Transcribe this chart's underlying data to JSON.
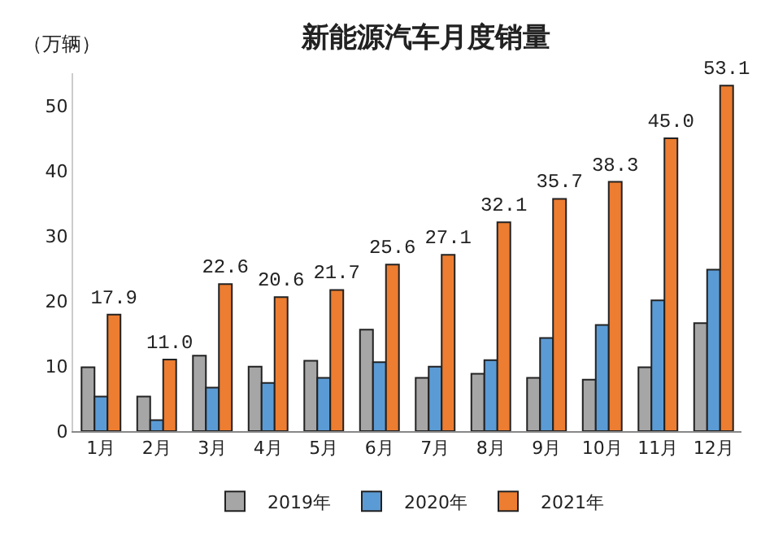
{
  "chart_data": {
    "type": "bar",
    "title": "新能源汽车月度销量",
    "ylabel": "（万辆）",
    "categories": [
      "1月",
      "2月",
      "3月",
      "4月",
      "5月",
      "6月",
      "7月",
      "8月",
      "9月",
      "10月",
      "11月",
      "12月"
    ],
    "series": [
      {
        "name": "2019年",
        "color": "#a6a6a6",
        "values": [
          9.8,
          5.3,
          11.6,
          9.9,
          10.8,
          15.6,
          8.2,
          8.8,
          8.2,
          7.9,
          9.8,
          16.6
        ]
      },
      {
        "name": "2020年",
        "color": "#5b9bd5",
        "values": [
          5.3,
          1.7,
          6.7,
          7.4,
          8.2,
          10.6,
          9.9,
          10.9,
          14.3,
          16.3,
          20.1,
          24.8
        ]
      },
      {
        "name": "2021年",
        "color": "#ed7d31",
        "values": [
          17.9,
          11.0,
          22.6,
          20.6,
          21.7,
          25.6,
          27.1,
          32.1,
          35.7,
          38.3,
          45.0,
          53.1
        ],
        "value_labels": [
          "17.9",
          "11.0",
          "22.6",
          "20.6",
          "21.7",
          "25.6",
          "27.1",
          "32.1",
          "35.7",
          "38.3",
          "45.0",
          "53.1"
        ]
      }
    ],
    "ylim": [
      0,
      55
    ],
    "yticks": [
      0,
      10,
      20,
      30,
      40,
      50
    ],
    "legend": "bottom"
  }
}
